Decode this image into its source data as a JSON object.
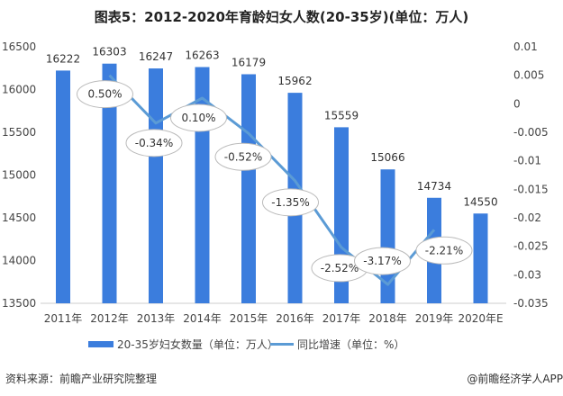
{
  "chart_data": {
    "type": "bar+line",
    "title": "图表5：2012-2020年育龄妇女人数(20-35岁)(单位：万人)",
    "categories": [
      "2011年",
      "2012年",
      "2013年",
      "2014年",
      "2015年",
      "2016年",
      "2017年",
      "2018年",
      "2019年",
      "2020年E"
    ],
    "series": [
      {
        "name": "20-35岁妇女数量（单位：万人）",
        "type": "bar",
        "axis": "left",
        "color": "#3b7ddd",
        "values": [
          16222,
          16303,
          16247,
          16263,
          16179,
          15962,
          15559,
          15066,
          14734,
          14550
        ]
      },
      {
        "name": "同比增速（单位：%）",
        "type": "line",
        "axis": "right",
        "color": "#5b9bd5",
        "x": [
          "2012年",
          "2013年",
          "2014年",
          "2015年",
          "2016年",
          "2017年",
          "2018年",
          "2019年"
        ],
        "values": [
          0.005,
          -0.0034,
          0.001,
          -0.0052,
          -0.0135,
          -0.0252,
          -0.0317,
          -0.0221
        ],
        "labels": [
          "0.50%",
          "-0.34%",
          "0.10%",
          "-0.52%",
          "-1.35%",
          "-2.52%",
          "-3.17%",
          "-2.21%"
        ]
      }
    ],
    "left_axis": {
      "range": [
        13500,
        16500
      ],
      "ticks": [
        "16500",
        "16000",
        "15500",
        "15000",
        "14500",
        "14000",
        "13500"
      ]
    },
    "right_axis": {
      "range": [
        -0.035,
        0.01
      ],
      "ticks": [
        "0.01",
        "0.005",
        "0",
        "-0.005",
        "-0.01",
        "-0.015",
        "-0.02",
        "-0.025",
        "-0.03",
        "-0.035"
      ]
    },
    "grid": false,
    "legend": "bottom"
  },
  "footer": {
    "source": "资料来源：前瞻产业研究院整理",
    "brand": "@前瞻经济学人APP"
  }
}
